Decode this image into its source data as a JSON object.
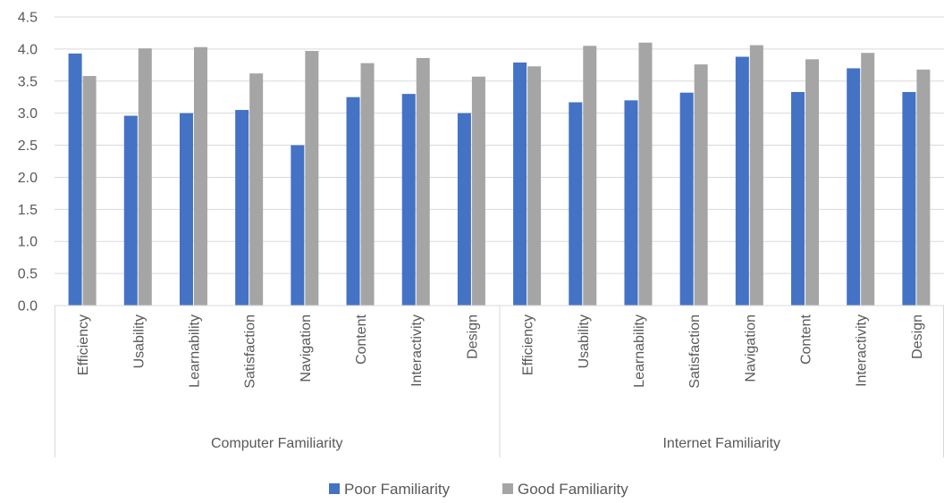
{
  "chart_data": {
    "type": "bar",
    "title": "",
    "xlabel": "",
    "ylabel": "",
    "ylim": [
      0,
      4.5
    ],
    "y_ticks": [
      "0.0",
      "0.5",
      "1.0",
      "1.5",
      "2.0",
      "2.5",
      "3.0",
      "3.5",
      "4.0",
      "4.5"
    ],
    "grid": true,
    "legend_position": "bottom",
    "groups": [
      {
        "label": "Computer Familiarity",
        "categories": [
          "Efficiency",
          "Usability",
          "Learnability",
          "Satisfaction",
          "Navigation",
          "Content",
          "Interactivity",
          "Design"
        ]
      },
      {
        "label": "Internet Familiarity",
        "categories": [
          "Efficiency",
          "Usability",
          "Learnability",
          "Satisfaction",
          "Navigation",
          "Content",
          "Interactivity",
          "Design"
        ]
      }
    ],
    "series": [
      {
        "name": "Poor Familiarity",
        "color": "#4472C4",
        "values": [
          3.93,
          2.96,
          3.0,
          3.05,
          2.5,
          3.25,
          3.3,
          3.0,
          3.79,
          3.17,
          3.2,
          3.32,
          3.88,
          3.33,
          3.7,
          3.33
        ]
      },
      {
        "name": "Good Familiarity",
        "color": "#A5A5A5",
        "values": [
          3.58,
          4.01,
          4.03,
          3.62,
          3.97,
          3.78,
          3.86,
          3.57,
          3.73,
          4.05,
          4.1,
          3.76,
          4.06,
          3.84,
          3.94,
          3.68
        ]
      }
    ]
  }
}
